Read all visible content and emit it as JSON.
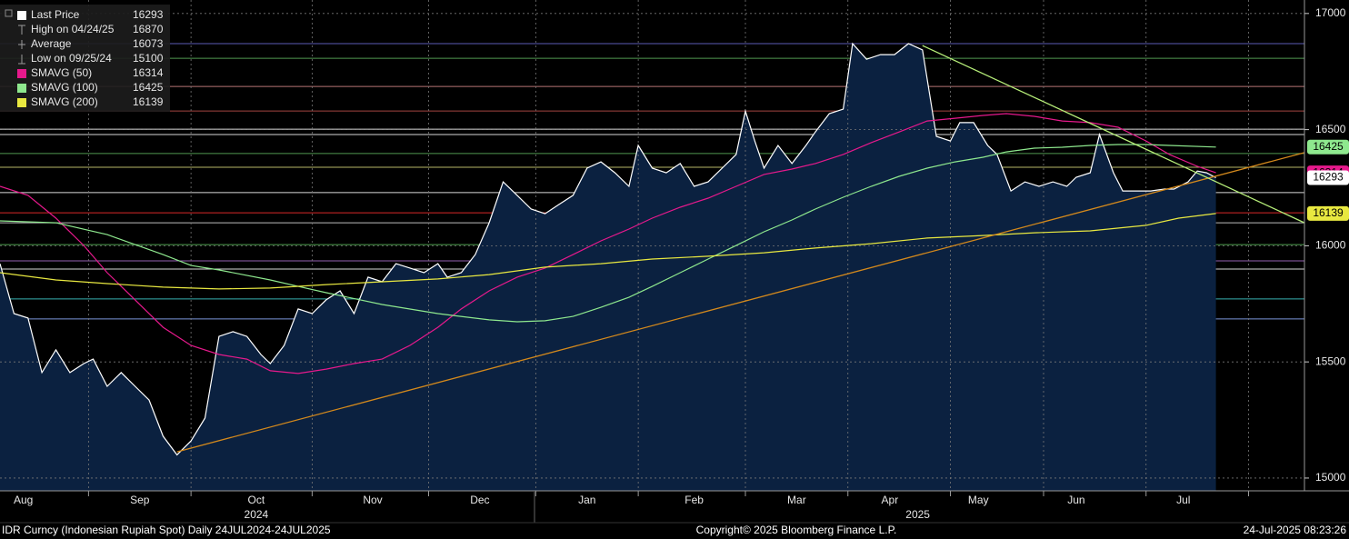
{
  "chart_data": {
    "type": "line",
    "xlim": [
      0,
      280
    ],
    "ylim": [
      14945,
      17058
    ],
    "yticks": [
      15000,
      15500,
      16000,
      16500,
      17000
    ],
    "xticks": [
      {
        "value": 5,
        "label": "Aug"
      },
      {
        "value": 30,
        "label": "Sep"
      },
      {
        "value": 55,
        "label": "Oct"
      },
      {
        "value": 80,
        "label": "Nov"
      },
      {
        "value": 103,
        "label": "Dec"
      },
      {
        "value": 126,
        "label": "Jan"
      },
      {
        "value": 149,
        "label": "Feb"
      },
      {
        "value": 171,
        "label": "Mar"
      },
      {
        "value": 191,
        "label": "Apr"
      },
      {
        "value": 210,
        "label": "May"
      },
      {
        "value": 231,
        "label": "Jun"
      },
      {
        "value": 254,
        "label": "Jul"
      }
    ],
    "year_ticks": [
      {
        "value": 55,
        "label": "2024"
      },
      {
        "value": 197,
        "label": "2025"
      }
    ],
    "xgrid": [
      19,
      41,
      67,
      92,
      115,
      137,
      160,
      182,
      204,
      224,
      246,
      268
    ],
    "grid": true,
    "series": [
      {
        "name": "Last Price",
        "color": "#ffffff",
        "area": "#0b2140",
        "x": [
          0,
          3,
          6,
          9,
          12,
          15,
          18,
          20,
          23,
          26,
          29,
          32,
          35,
          38,
          41,
          44,
          47,
          50,
          53,
          56,
          58,
          61,
          64,
          67,
          70,
          73,
          76,
          79,
          82,
          85,
          88,
          91,
          94,
          96,
          99,
          102,
          105,
          108,
          111,
          114,
          117,
          120,
          123,
          126,
          129,
          132,
          135,
          137,
          140,
          143,
          146,
          149,
          152,
          155,
          158,
          160,
          162,
          164,
          167,
          170,
          173,
          175,
          178,
          181,
          183,
          186,
          189,
          192,
          195,
          198,
          201,
          204,
          206,
          209,
          212,
          214,
          217,
          220,
          223,
          226,
          229,
          231,
          234,
          236,
          239,
          241,
          244,
          247,
          250,
          252,
          255,
          257,
          259,
          261
        ],
        "values": [
          15923,
          15708,
          15689,
          15454,
          15552,
          15454,
          15493,
          15512,
          15395,
          15454,
          15395,
          15336,
          15180,
          15100,
          15160,
          15258,
          15610,
          15630,
          15610,
          15532,
          15493,
          15571,
          15728,
          15708,
          15767,
          15806,
          15708,
          15865,
          15845,
          15923,
          15904,
          15884,
          15923,
          15865,
          15884,
          15962,
          16099,
          16275,
          16217,
          16158,
          16138,
          16178,
          16217,
          16334,
          16361,
          16314,
          16256,
          16432,
          16334,
          16314,
          16354,
          16256,
          16275,
          16334,
          16393,
          16580,
          16451,
          16334,
          16432,
          16354,
          16432,
          16490,
          16569,
          16588,
          16870,
          16803,
          16823,
          16823,
          16870,
          16843,
          16471,
          16451,
          16530,
          16530,
          16432,
          16393,
          16236,
          16275,
          16256,
          16275,
          16256,
          16295,
          16314,
          16479,
          16314,
          16236,
          16236,
          16236,
          16244,
          16244,
          16275,
          16322,
          16314,
          16293
        ]
      },
      {
        "name": "SMAVG (50)",
        "color": "#e6198c",
        "x": [
          0,
          6,
          12,
          18,
          23,
          29,
          35,
          41,
          47,
          53,
          58,
          64,
          70,
          76,
          82,
          88,
          94,
          99,
          105,
          111,
          117,
          123,
          129,
          135,
          140,
          146,
          152,
          158,
          164,
          170,
          175,
          181,
          187,
          193,
          199,
          205,
          211,
          216,
          222,
          228,
          234,
          240,
          246,
          251,
          257,
          261
        ],
        "values": [
          16256,
          16217,
          16119,
          16001,
          15884,
          15767,
          15649,
          15571,
          15532,
          15512,
          15462,
          15450,
          15469,
          15493,
          15512,
          15571,
          15649,
          15728,
          15806,
          15865,
          15904,
          15962,
          16021,
          16072,
          16119,
          16166,
          16205,
          16256,
          16307,
          16330,
          16354,
          16393,
          16444,
          16490,
          16537,
          16549,
          16561,
          16569,
          16557,
          16537,
          16530,
          16510,
          16451,
          16393,
          16342,
          16314
        ]
      },
      {
        "name": "SMAVG (100)",
        "color": "#8ee88e",
        "x": [
          0,
          12,
          23,
          35,
          41,
          47,
          58,
          64,
          70,
          82,
          94,
          105,
          111,
          117,
          123,
          129,
          135,
          140,
          146,
          152,
          158,
          164,
          170,
          175,
          181,
          187,
          193,
          199,
          205,
          211,
          216,
          222,
          228,
          234,
          240,
          246,
          251,
          261
        ],
        "values": [
          16107,
          16099,
          16048,
          15962,
          15915,
          15896,
          15853,
          15825,
          15798,
          15747,
          15708,
          15681,
          15673,
          15677,
          15696,
          15735,
          15778,
          15825,
          15884,
          15943,
          16001,
          16060,
          16111,
          16158,
          16209,
          16256,
          16299,
          16334,
          16361,
          16381,
          16404,
          16420,
          16424,
          16432,
          16436,
          16436,
          16432,
          16425
        ]
      },
      {
        "name": "SMAVG (200)",
        "color": "#e8e840",
        "x": [
          0,
          12,
          23,
          35,
          47,
          58,
          70,
          82,
          94,
          105,
          111,
          117,
          129,
          140,
          152,
          164,
          175,
          187,
          199,
          211,
          222,
          234,
          246,
          253,
          261
        ],
        "values": [
          15884,
          15853,
          15837,
          15822,
          15814,
          15818,
          15833,
          15845,
          15857,
          15876,
          15892,
          15908,
          15923,
          15943,
          15955,
          15970,
          15990,
          16009,
          16033,
          16044,
          16056,
          16064,
          16088,
          16119,
          16139
        ]
      }
    ],
    "stats": [
      {
        "label": "High on 04/24/25",
        "value": 16870
      },
      {
        "label": "Average",
        "value": 16073
      },
      {
        "label": "Low on 09/25/24",
        "value": 15100
      }
    ],
    "horizontal_lines": [
      {
        "value": 16870,
        "color": "#6b6bd6"
      },
      {
        "value": 16807,
        "color": "#5fb35f"
      },
      {
        "value": 16686,
        "color": "#d98a8a"
      },
      {
        "value": 16580,
        "color": "#c0504d"
      },
      {
        "value": 16502,
        "color": "#ffffff"
      },
      {
        "value": 16479,
        "color": "#ffffff"
      },
      {
        "value": 16397,
        "color": "#5fb35f"
      },
      {
        "value": 16338,
        "color": "#d6d67a"
      },
      {
        "value": 16229,
        "color": "#ffffff"
      },
      {
        "value": 16142,
        "color": "#ff3030"
      },
      {
        "value": 16099,
        "color": "#dddddd"
      },
      {
        "value": 16005,
        "color": "#5fbf5f"
      },
      {
        "value": 15935,
        "color": "#b070d0"
      },
      {
        "value": 15900,
        "color": "#ffffff"
      },
      {
        "value": 15771,
        "color": "#40d0d0"
      },
      {
        "value": 15685,
        "color": "#8fb0ff"
      }
    ],
    "trend_lines": [
      {
        "color": "#d4891c",
        "x": [
          38,
          280
        ],
        "values": [
          15113,
          16401
        ]
      },
      {
        "color": "#b8f07a",
        "x": [
          198,
          280
        ],
        "values": [
          16862,
          16099
        ]
      }
    ],
    "footer": {
      "left": "IDR Curncy (Indonesian Rupiah Spot)  Daily 24JUL2024-24JUL2025",
      "center": "Copyright© 2025 Bloomberg Finance L.P.",
      "right": "24-Jul-2025 08:23:26"
    }
  }
}
